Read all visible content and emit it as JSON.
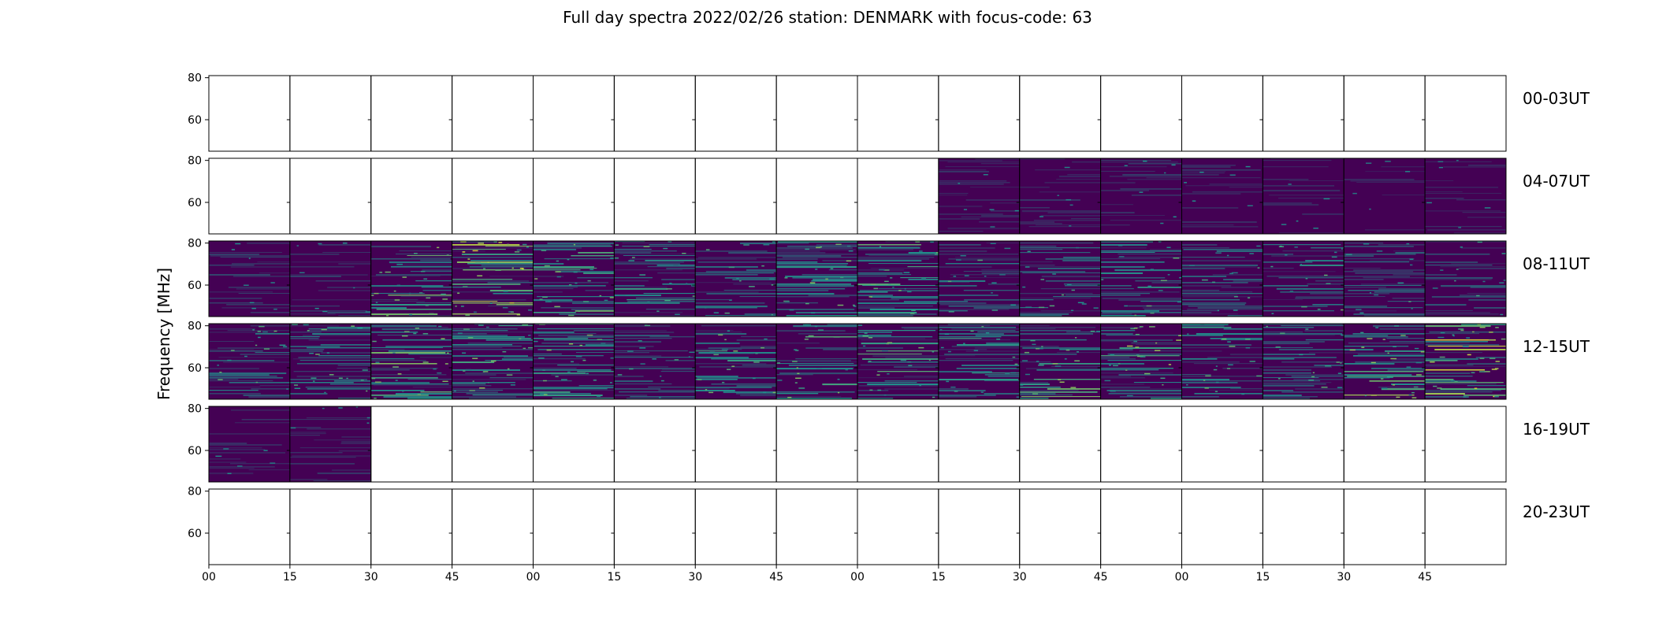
{
  "title": "Full day spectra 2022/02/26 station: DENMARK with focus-code: 63",
  "ylabel": "Frequency [MHz]",
  "colors": {
    "viridis_low": "#440154",
    "viridis_mid": "#21918c",
    "viridis_high": "#fde725",
    "frame": "#000000",
    "background": "#ffffff"
  },
  "chart_data": {
    "type": "heatmap",
    "title": "Full day spectra 2022/02/26 station: DENMARK with focus-code: 63",
    "ylabel": "Frequency [MHz]",
    "xlabel": "",
    "ylim": [
      45,
      81
    ],
    "y_ticks": [
      60,
      80
    ],
    "x_tick_labels": [
      "00",
      "15",
      "30",
      "45",
      "00",
      "15",
      "30",
      "45",
      "00",
      "15",
      "30",
      "45",
      "00",
      "15",
      "30",
      "45"
    ],
    "colormap": "viridis",
    "panels_per_row": 16,
    "rows": [
      {
        "label": "00-03UT",
        "intensity": [
          0,
          0,
          0,
          0,
          0,
          0,
          0,
          0,
          0,
          0,
          0,
          0,
          0,
          0,
          0,
          0
        ]
      },
      {
        "label": "04-07UT",
        "intensity": [
          0,
          0,
          0,
          0,
          0,
          0,
          0,
          0,
          0,
          0.15,
          0.15,
          0.18,
          0.15,
          0.12,
          0.12,
          0.15
        ]
      },
      {
        "label": "08-11UT",
        "intensity": [
          0.2,
          0.2,
          0.6,
          0.85,
          0.6,
          0.5,
          0.4,
          0.55,
          0.55,
          0.4,
          0.4,
          0.45,
          0.35,
          0.45,
          0.35,
          0.3
        ]
      },
      {
        "label": "12-15UT",
        "intensity": [
          0.45,
          0.5,
          0.6,
          0.65,
          0.6,
          0.35,
          0.5,
          0.55,
          0.55,
          0.5,
          0.6,
          0.7,
          0.5,
          0.4,
          0.7,
          0.85
        ]
      },
      {
        "label": "16-19UT",
        "intensity": [
          0.15,
          0.15,
          0,
          0,
          0,
          0,
          0,
          0,
          0,
          0,
          0,
          0,
          0,
          0,
          0,
          0
        ]
      },
      {
        "label": "20-23UT",
        "intensity": [
          0,
          0,
          0,
          0,
          0,
          0,
          0,
          0,
          0,
          0,
          0,
          0,
          0,
          0,
          0,
          0
        ]
      }
    ]
  }
}
